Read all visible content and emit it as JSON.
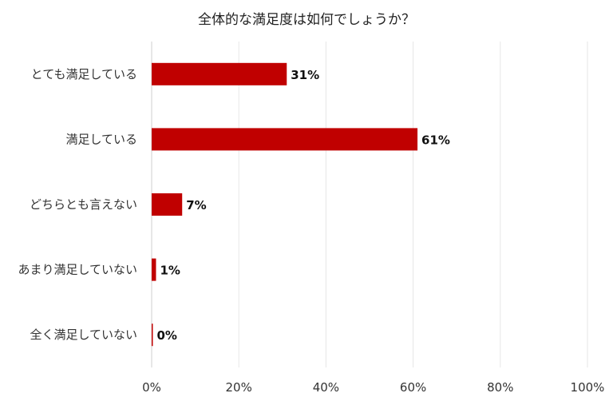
{
  "chart_data": {
    "type": "bar",
    "orientation": "horizontal",
    "title": "全体的な満足度は如何でしょうか？",
    "categories": [
      "とても満足している",
      "満足している",
      "どちらとも言えない",
      "あまり満足していない",
      "全く満足していない"
    ],
    "values": [
      31,
      61,
      7,
      1,
      0
    ],
    "value_labels": [
      "31%",
      "61%",
      "7%",
      "1%",
      "0%"
    ],
    "xlim": [
      0,
      100
    ],
    "xticks": [
      0,
      20,
      40,
      60,
      80,
      100
    ],
    "xtick_labels": [
      "0%",
      "20%",
      "40%",
      "60%",
      "80%",
      "100%"
    ],
    "xlabel": "",
    "ylabel": "",
    "grid": true,
    "legend": "none",
    "bar_color": "#c00000"
  }
}
